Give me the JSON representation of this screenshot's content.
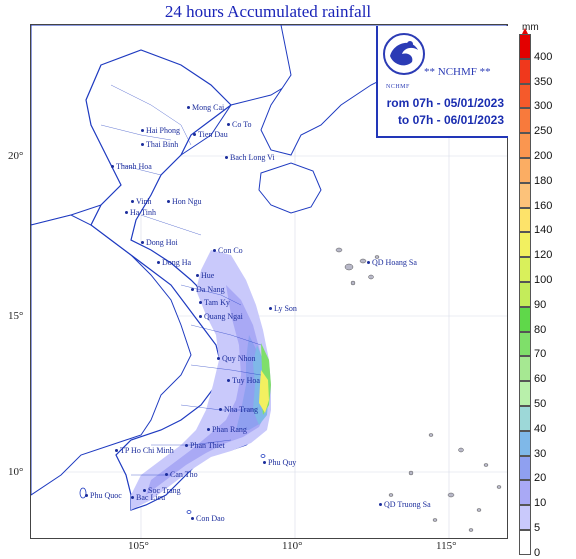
{
  "title": "24 hours Accumulated rainfall",
  "logo": {
    "name": "** NCHMF **",
    "small": "NCHMF"
  },
  "period": {
    "from": "rom 07h - 05/01/2023",
    "to": "to 07h - 06/01/2023"
  },
  "legend": {
    "unit": "mm",
    "levels": [
      {
        "label": "400",
        "color": "#e30000"
      },
      {
        "label": "350",
        "color": "#f0381c"
      },
      {
        "label": "300",
        "color": "#f55a2b"
      },
      {
        "label": "250",
        "color": "#f87a3c"
      },
      {
        "label": "200",
        "color": "#fa9650"
      },
      {
        "label": "180",
        "color": "#fbad63"
      },
      {
        "label": "160",
        "color": "#fcc27a"
      },
      {
        "label": "140",
        "color": "#fde36a"
      },
      {
        "label": "120",
        "color": "#f2f060"
      },
      {
        "label": "100",
        "color": "#d9f05b"
      },
      {
        "label": "90",
        "color": "#c4ec5a"
      },
      {
        "label": "80",
        "color": "#5fd84a"
      },
      {
        "label": "70",
        "color": "#7fdf6a"
      },
      {
        "label": "60",
        "color": "#a6e892"
      },
      {
        "label": "50",
        "color": "#b9f0ab"
      },
      {
        "label": "40",
        "color": "#9dd8d8"
      },
      {
        "label": "30",
        "color": "#7fb8e8"
      },
      {
        "label": "20",
        "color": "#8fa0f0"
      },
      {
        "label": "10",
        "color": "#a9a9f5"
      },
      {
        "label": "5",
        "color": "#c9c9fb"
      },
      {
        "label": "0",
        "color": "#ffffff"
      }
    ]
  },
  "axes": {
    "latitudes": [
      "20°",
      "15°",
      "10°"
    ],
    "longitudes": [
      "105°",
      "110°",
      "115°"
    ]
  },
  "places": [
    "Mong Cai",
    "Co To",
    "Tien Dau",
    "Hai Phong",
    "Thai Binh",
    "Bach Long Vi",
    "Thanh Hoa",
    "Vinh",
    "Hon Ngu",
    "Ha Tinh",
    "Dong Hoi",
    "Con Co",
    "Dong Ha",
    "Hue",
    "Da Nang",
    "Tam Ky",
    "Ly Son",
    "Quang Ngai",
    "QD Hoang Sa",
    "Quy Nhon",
    "Tuy Hoa",
    "Nha Trang",
    "Phan Rang",
    "Phan Thiet",
    "TP Ho Chi Minh",
    "Phu Quy",
    "Can Tho",
    "Soc Trang",
    "Phu Quoc",
    "Bac Lieu",
    "Con Dao",
    "QD Truong Sa"
  ]
}
